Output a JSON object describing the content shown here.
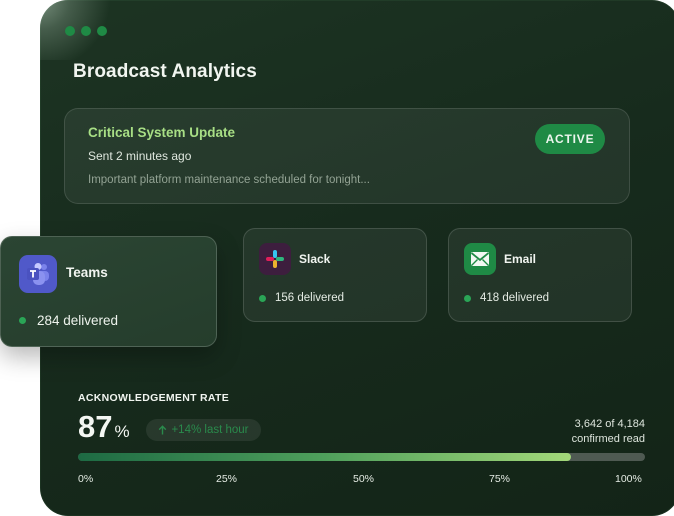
{
  "window": {
    "title": "Broadcast Analytics"
  },
  "message": {
    "title": "Critical System Update",
    "time": "Sent 2 minutes ago",
    "body": "Important platform maintenance scheduled for tonight...",
    "status": "ACTIVE"
  },
  "channels": {
    "teams": {
      "name": "Teams",
      "delivered": "284 delivered",
      "icon": "teams-icon",
      "color": "#5059c9"
    },
    "slack": {
      "name": "Slack",
      "delivered": "156 delivered",
      "icon": "slack-icon",
      "color": "#3d1e3e"
    },
    "email": {
      "name": "Email",
      "delivered": "418 delivered",
      "icon": "mail-icon",
      "color": "#1f8a45"
    }
  },
  "acknowledgement": {
    "label": "ACKNOWLEDGEMENT RATE",
    "value": "87",
    "unit": "%",
    "trend": "+14% last hour",
    "confirmed_count": "3,642 of 4,184",
    "confirmed_label": "confirmed read",
    "progress": 87,
    "scale": [
      "0%",
      "25%",
      "50%",
      "75%",
      "100%"
    ]
  },
  "colors": {
    "accent": "#1f8a45",
    "highlight": "#a8df85",
    "panel": "#172b1d"
  }
}
